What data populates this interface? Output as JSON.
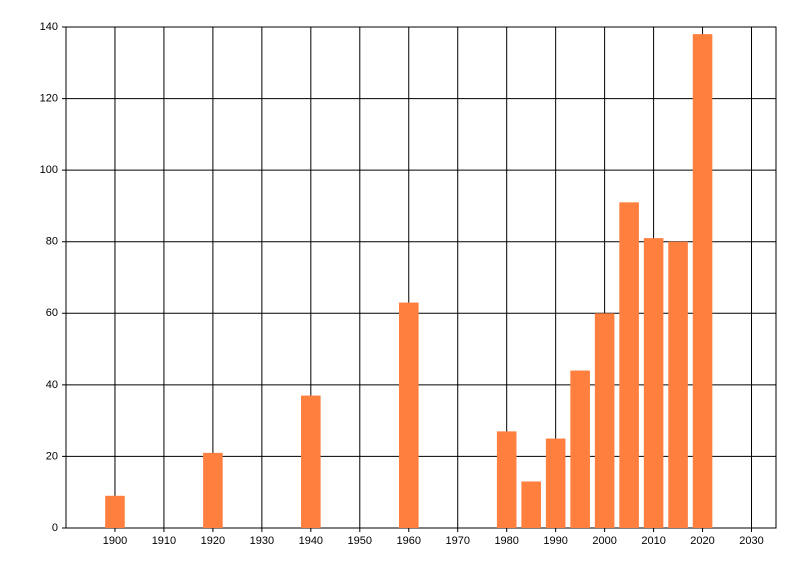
{
  "chart_data": {
    "type": "bar",
    "x": [
      1900,
      1920,
      1940,
      1960,
      1980,
      1985,
      1990,
      1995,
      2000,
      2005,
      2010,
      2015,
      2020
    ],
    "values": [
      9,
      21,
      37,
      63,
      27,
      13,
      25,
      44,
      60,
      91,
      81,
      80,
      138
    ],
    "color": "#ff7f3f",
    "xlim": [
      1890,
      2035
    ],
    "xticks": [
      1900,
      1910,
      1920,
      1930,
      1940,
      1950,
      1960,
      1970,
      1980,
      1990,
      2000,
      2010,
      2020,
      2030
    ],
    "ylim": [
      0,
      140
    ],
    "yticks": [
      0,
      20,
      40,
      60,
      80,
      100,
      120,
      140
    ],
    "bar_width": 4,
    "grid": true
  }
}
